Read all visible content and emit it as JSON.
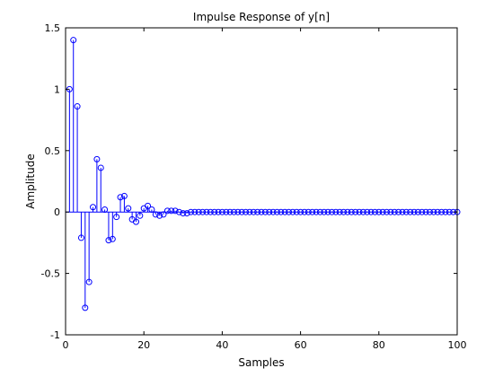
{
  "figure": {
    "background": "#ffffff"
  },
  "chart_data": {
    "type": "stem",
    "title": "Impulse Response of y[n]",
    "xlabel": "Samples",
    "ylabel": "Amplitude",
    "xlim": [
      0,
      100
    ],
    "ylim": [
      -1,
      1.5
    ],
    "xticks": [
      0,
      20,
      40,
      60,
      80,
      100
    ],
    "yticks": [
      -1,
      -0.5,
      0,
      0.5,
      1,
      1.5
    ],
    "xtick_labels": [
      "0",
      "20",
      "40",
      "60",
      "80",
      "100"
    ],
    "ytick_labels": [
      "-1",
      "-0.5",
      "0",
      "0.5",
      "1",
      "1.5"
    ],
    "grid": false,
    "marker_color": "#0000ff",
    "axis_color": "#000000",
    "series": [
      {
        "marker": "circle",
        "x": [
          1,
          2,
          3,
          4,
          5,
          6,
          7,
          8,
          9,
          10,
          11,
          12,
          13,
          14,
          15,
          16,
          17,
          18,
          19,
          20,
          21,
          22,
          23,
          24,
          25,
          26,
          27,
          28,
          29,
          30,
          31,
          32,
          33,
          34,
          35,
          36,
          37,
          38,
          39,
          40,
          41,
          42,
          43,
          44,
          45,
          46,
          47,
          48,
          49,
          50,
          51,
          52,
          53,
          54,
          55,
          56,
          57,
          58,
          59,
          60,
          61,
          62,
          63,
          64,
          65,
          66,
          67,
          68,
          69,
          70,
          71,
          72,
          73,
          74,
          75,
          76,
          77,
          78,
          79,
          80,
          81,
          82,
          83,
          84,
          85,
          86,
          87,
          88,
          89,
          90,
          91,
          92,
          93,
          94,
          95,
          96,
          97,
          98,
          99,
          100
        ],
        "y": [
          1.0,
          1.4,
          0.86,
          -0.21,
          -0.78,
          -0.57,
          0.04,
          0.43,
          0.36,
          0.02,
          -0.23,
          -0.22,
          -0.04,
          0.12,
          0.13,
          0.03,
          -0.06,
          -0.08,
          -0.03,
          0.03,
          0.05,
          0.02,
          -0.02,
          -0.03,
          -0.02,
          0.01,
          0.01,
          0.01,
          0.0,
          -0.01,
          -0.01,
          0.0,
          0.0,
          0.0,
          0.0,
          0.0,
          0.0,
          0.0,
          0.0,
          0.0,
          0.0,
          0.0,
          0.0,
          0.0,
          0.0,
          0.0,
          0.0,
          0.0,
          0.0,
          0.0,
          0.0,
          0.0,
          0.0,
          0.0,
          0.0,
          0.0,
          0.0,
          0.0,
          0.0,
          0.0,
          0.0,
          0.0,
          0.0,
          0.0,
          0.0,
          0.0,
          0.0,
          0.0,
          0.0,
          0.0,
          0.0,
          0.0,
          0.0,
          0.0,
          0.0,
          0.0,
          0.0,
          0.0,
          0.0,
          0.0,
          0.0,
          0.0,
          0.0,
          0.0,
          0.0,
          0.0,
          0.0,
          0.0,
          0.0,
          0.0,
          0.0,
          0.0,
          0.0,
          0.0,
          0.0,
          0.0,
          0.0,
          0.0,
          0.0,
          0.0
        ]
      }
    ]
  }
}
